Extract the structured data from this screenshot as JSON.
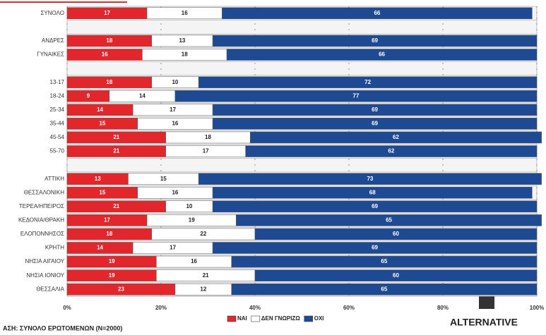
{
  "chart_data": {
    "type": "stacked_barh",
    "categories": [
      "ΣΥΝΟΛΟ",
      null,
      "ΑΝΔΡΕΣ",
      "ΓΥΝΑΙΚΕΣ",
      null,
      "13-17",
      "18-24",
      "25-34",
      "35-44",
      "45-54",
      "55-70",
      null,
      "ΑΤΤΙΚΗ",
      "ΘΕΣΣΑΛΟΝΙΚΗ",
      "ΤΕΡΕΑ/ΗΠΕΙΡΟΣ",
      "ΚΕΔΟΝΙΑ/ΘΡΑΚΗ",
      "ΕΛΟΠΟΝΝΗΣΟΣ",
      "ΚΡΗΤΗ",
      "ΝΗΣΙΑ ΑΙΓΑΙΟΥ",
      "ΝΗΣΙΑ ΙΟΝΙΟΥ",
      "ΘΕΣΣΑΛΙΑ"
    ],
    "series": [
      {
        "name": "ΝΑΙ",
        "color": "#e3262c",
        "values": [
          17,
          null,
          18,
          16,
          null,
          18,
          9,
          14,
          15,
          21,
          21,
          null,
          13,
          15,
          21,
          17,
          18,
          14,
          19,
          19,
          23
        ]
      },
      {
        "name": "ΔΕΝ ΓΝΩΡΙΖΩ",
        "color": "#ffffff",
        "values": [
          16,
          null,
          13,
          18,
          null,
          10,
          14,
          17,
          16,
          18,
          17,
          null,
          15,
          16,
          10,
          19,
          22,
          17,
          16,
          21,
          12
        ]
      },
      {
        "name": "ΟΧΙ",
        "color": "#1d4a93",
        "values": [
          66,
          null,
          69,
          66,
          null,
          72,
          77,
          69,
          69,
          62,
          62,
          null,
          73,
          68,
          69,
          65,
          60,
          69,
          65,
          60,
          65
        ]
      }
    ],
    "xlim": [
      0,
      100
    ],
    "xticks": [
      {
        "value": 0,
        "label": "0%"
      },
      {
        "value": 20,
        "label": "20%"
      },
      {
        "value": 40,
        "label": "40%"
      },
      {
        "value": 60,
        "label": "60%"
      },
      {
        "value": 80,
        "label": "80%"
      },
      {
        "value": 100,
        "label": "100%"
      }
    ],
    "grid": true,
    "legend": "bottom",
    "footnote": "ΑΣΗ: ΣΥΝΟΛΟ ΕΡΩΤΟΜΕΝΩΝ (N=2000)",
    "logo": "ALTERNATIVE"
  }
}
